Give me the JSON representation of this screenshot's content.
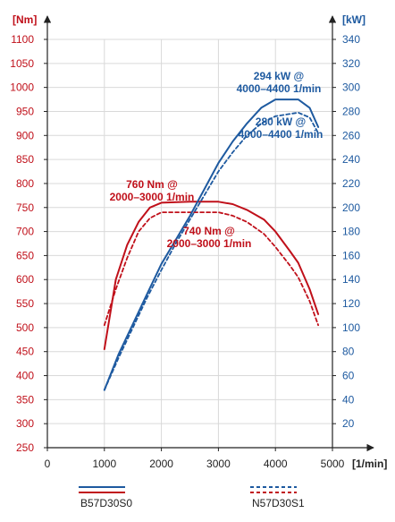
{
  "chart_data": {
    "type": "line",
    "x_unit": "[1/min]",
    "left_unit": "[Nm]",
    "right_unit": "[kW]",
    "xlim": [
      0,
      5000
    ],
    "ylim_left": [
      250,
      1100
    ],
    "ylim_right": [
      0,
      340
    ],
    "x_ticks": [
      "0",
      "1000",
      "2000",
      "3000",
      "4000",
      "5000"
    ],
    "left_ticks": [
      "250",
      "300",
      "350",
      "400",
      "450",
      "500",
      "550",
      "600",
      "650",
      "700",
      "750",
      "800",
      "850",
      "900",
      "950",
      "1000",
      "1050",
      "1100"
    ],
    "right_ticks": [
      "20",
      "40",
      "60",
      "80",
      "100",
      "120",
      "140",
      "160",
      "180",
      "200",
      "220",
      "240",
      "260",
      "280",
      "300",
      "320",
      "340"
    ],
    "grid": true,
    "series": [
      {
        "name": "B57D30S0",
        "axis": "left",
        "quantity": "torque",
        "style": "solid",
        "color": "#c0101a",
        "x": [
          1000,
          1200,
          1400,
          1600,
          1800,
          2000,
          2500,
          3000,
          3250,
          3500,
          3800,
          4000,
          4250,
          4400,
          4600,
          4750
        ],
        "y": [
          455,
          600,
          672,
          720,
          750,
          760,
          762,
          762,
          757,
          745,
          725,
          700,
          660,
          635,
          580,
          528
        ]
      },
      {
        "name": "N57D30S1",
        "axis": "left",
        "quantity": "torque",
        "style": "dashed",
        "color": "#c0101a",
        "x": [
          1000,
          1200,
          1400,
          1600,
          1800,
          2000,
          2500,
          3000,
          3250,
          3500,
          3800,
          4000,
          4250,
          4400,
          4600,
          4750
        ],
        "y": [
          505,
          580,
          645,
          700,
          728,
          740,
          740,
          740,
          733,
          720,
          695,
          668,
          630,
          605,
          555,
          505
        ]
      },
      {
        "name": "B57D30S0",
        "axis": "right",
        "quantity": "power",
        "style": "solid",
        "color": "#1e5aa0",
        "x": [
          1000,
          1250,
          1500,
          1750,
          2000,
          2250,
          2500,
          2750,
          3000,
          3250,
          3500,
          3750,
          4000,
          4400,
          4600,
          4750
        ],
        "y": [
          48,
          78,
          103,
          128,
          153,
          173,
          193,
          215,
          237,
          255,
          270,
          283,
          290,
          290,
          283,
          267
        ]
      },
      {
        "name": "N57D30S1",
        "axis": "right",
        "quantity": "power",
        "style": "dashed",
        "color": "#1e5aa0",
        "x": [
          1000,
          1250,
          1500,
          1750,
          2000,
          2250,
          2500,
          2750,
          3000,
          3250,
          3500,
          3750,
          4000,
          4400,
          4600,
          4750
        ],
        "y": [
          48,
          75,
          100,
          125,
          148,
          170,
          190,
          210,
          230,
          246,
          260,
          270,
          276,
          279,
          275,
          262
        ]
      }
    ],
    "annotations": [
      {
        "lines": [
          "294 kW @",
          "4000–4400 1/min"
        ],
        "color": "blue"
      },
      {
        "lines": [
          "280 kW @",
          "4000–4400 1/min"
        ],
        "color": "blue"
      },
      {
        "lines": [
          "760 Nm @",
          "2000–3000 1/min"
        ],
        "color": "red"
      },
      {
        "lines": [
          "740 Nm @",
          "2000–3000 1/min"
        ],
        "color": "red"
      }
    ],
    "legend": [
      {
        "label": "B57D30S0",
        "style": "solid"
      },
      {
        "label": "N57D30S1",
        "style": "dashed"
      }
    ],
    "legend_position": "bottom"
  }
}
